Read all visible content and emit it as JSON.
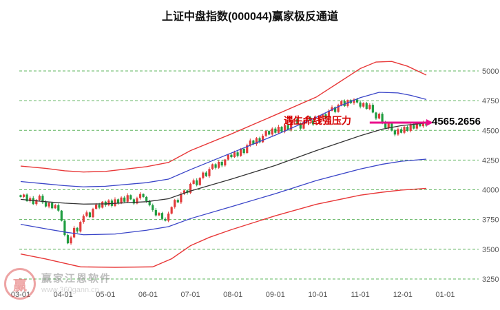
{
  "annotation": {
    "pressure_text": "遇生命线强压力",
    "price_label": "4565.2656",
    "price_value": 4565.2656
  },
  "watermark": {
    "brand": "赢家江恩软件",
    "url": "www.360gann.cn",
    "logo_char": "赢"
  },
  "chart_data": {
    "type": "candlestick",
    "title": "上证中盘指数(000044)赢家极反通道",
    "ylim": [
      3200,
      5150
    ],
    "grid": "horizontal-dashed",
    "y_ticks": [
      3250,
      3500,
      3750,
      4000,
      4250,
      4500,
      4750,
      5000
    ],
    "x_tick_labels": [
      "03-01",
      "04-01",
      "05-01",
      "06-01",
      "07-01",
      "08-01",
      "09-01",
      "10-01",
      "11-01",
      "12-01",
      "01-01"
    ],
    "x_tick_indices": [
      0,
      13.5,
      27,
      40.5,
      54,
      67.5,
      81,
      94.5,
      108,
      121.5,
      135
    ],
    "closes": [
      3940,
      3960,
      3905,
      3930,
      3880,
      3915,
      3950,
      3895,
      3860,
      3890,
      3845,
      3870,
      3825,
      3740,
      3620,
      3550,
      3600,
      3680,
      3650,
      3730,
      3780,
      3810,
      3770,
      3840,
      3875,
      3850,
      3900,
      3870,
      3910,
      3865,
      3920,
      3890,
      3935,
      3900,
      3955,
      3920,
      3885,
      3930,
      3965,
      3940,
      3905,
      3870,
      3830,
      3785,
      3805,
      3755,
      3740,
      3800,
      3855,
      3915,
      3895,
      3965,
      3995,
      3975,
      4050,
      4080,
      4040,
      4100,
      4145,
      4115,
      4175,
      4215,
      4185,
      4235,
      4205,
      4255,
      4295,
      4275,
      4315,
      4285,
      4345,
      4310,
      4375,
      4415,
      4385,
      4435,
      4400,
      4455,
      4495,
      4465,
      4515,
      4480,
      4530,
      4490,
      4545,
      4505,
      4565,
      4595,
      4555,
      4515,
      4575,
      4615,
      4585,
      4550,
      4560,
      4600,
      4635,
      4605,
      4665,
      4695,
      4655,
      4715,
      4745,
      4705,
      4755,
      4730,
      4760,
      4735,
      4700,
      4730,
      4680,
      4715,
      4650,
      4600,
      4640,
      4565,
      4520,
      4560,
      4500,
      4465,
      4510,
      4480,
      4530,
      4495,
      4545,
      4515,
      4555,
      4535,
      4570,
      4540
    ],
    "channels": {
      "upper_red": [
        [
          0,
          4200
        ],
        [
          8,
          4180
        ],
        [
          14,
          4160
        ],
        [
          20,
          4150
        ],
        [
          27,
          4155
        ],
        [
          40,
          4195
        ],
        [
          47,
          4230
        ],
        [
          54,
          4330
        ],
        [
          67,
          4470
        ],
        [
          81,
          4630
        ],
        [
          94,
          4780
        ],
        [
          101,
          4900
        ],
        [
          108,
          5020
        ],
        [
          113,
          5075
        ],
        [
          118,
          5080
        ],
        [
          123,
          5040
        ],
        [
          129,
          4965
        ]
      ],
      "upper_blue": [
        [
          0,
          4070
        ],
        [
          8,
          4050
        ],
        [
          14,
          4035
        ],
        [
          20,
          4025
        ],
        [
          27,
          4030
        ],
        [
          40,
          4060
        ],
        [
          47,
          4090
        ],
        [
          54,
          4170
        ],
        [
          67,
          4310
        ],
        [
          81,
          4460
        ],
        [
          94,
          4610
        ],
        [
          101,
          4700
        ],
        [
          108,
          4775
        ],
        [
          114,
          4820
        ],
        [
          120,
          4815
        ],
        [
          124,
          4795
        ],
        [
          129,
          4760
        ]
      ],
      "life_line_black": [
        [
          0,
          3920
        ],
        [
          8,
          3900
        ],
        [
          14,
          3888
        ],
        [
          20,
          3880
        ],
        [
          27,
          3882
        ],
        [
          40,
          3900
        ],
        [
          47,
          3925
        ],
        [
          54,
          3990
        ],
        [
          67,
          4090
        ],
        [
          81,
          4205
        ],
        [
          94,
          4330
        ],
        [
          108,
          4455
        ],
        [
          115,
          4510
        ],
        [
          121,
          4540
        ],
        [
          129,
          4562
        ]
      ],
      "lower_blue": [
        [
          0,
          3710
        ],
        [
          8,
          3672
        ],
        [
          14,
          3645
        ],
        [
          20,
          3622
        ],
        [
          30,
          3628
        ],
        [
          40,
          3660
        ],
        [
          47,
          3690
        ],
        [
          54,
          3758
        ],
        [
          67,
          3858
        ],
        [
          81,
          3968
        ],
        [
          94,
          4078
        ],
        [
          108,
          4175
        ],
        [
          115,
          4215
        ],
        [
          121,
          4240
        ],
        [
          129,
          4258
        ]
      ],
      "lower_red": [
        [
          0,
          3460
        ],
        [
          8,
          3418
        ],
        [
          14,
          3382
        ],
        [
          19,
          3352
        ],
        [
          30,
          3348
        ],
        [
          42,
          3352
        ],
        [
          48,
          3420
        ],
        [
          54,
          3530
        ],
        [
          60,
          3600
        ],
        [
          67,
          3665
        ],
        [
          81,
          3782
        ],
        [
          94,
          3878
        ],
        [
          108,
          3955
        ],
        [
          115,
          3980
        ],
        [
          121,
          3998
        ],
        [
          129,
          4012
        ]
      ]
    },
    "colors": {
      "up": "#e23b3b",
      "down": "#1f9d40",
      "channel_red": "#e83838",
      "channel_blue": "#3a45c8",
      "life_line": "#333333",
      "grid": "#43a843",
      "arrow": "#ea0f8b",
      "axis_text": "#555555"
    }
  }
}
